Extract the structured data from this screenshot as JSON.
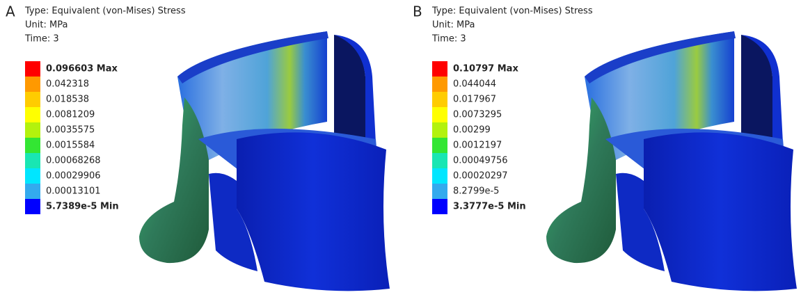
{
  "legend_colors": [
    "#ff0000",
    "#ff9900",
    "#ffcc00",
    "#ffff00",
    "#b3f20d",
    "#33e633",
    "#19e6b3",
    "#00e6ff",
    "#33aaee",
    "#0000ff"
  ],
  "panels": [
    {
      "label": "A",
      "header": [
        "Type: Equivalent (von-Mises) Stress",
        "Unit: MPa",
        "Time: 3"
      ],
      "legend": [
        "0.096603 Max",
        "0.042318",
        "0.018538",
        "0.0081209",
        "0.0035575",
        "0.0015584",
        "0.00068268",
        "0.00029906",
        "0.00013101",
        "5.7389e-5 Min"
      ]
    },
    {
      "label": "B",
      "header": [
        "Type: Equivalent (von-Mises) Stress",
        "Unit: MPa",
        "Time: 3"
      ],
      "legend": [
        "0.10797 Max",
        "0.044044",
        "0.017967",
        "0.0073295",
        "0.00299",
        "0.0012197",
        "0.00049756",
        "0.00020297",
        "8.2799e-5",
        "3.3777e-5 Min"
      ]
    }
  ]
}
